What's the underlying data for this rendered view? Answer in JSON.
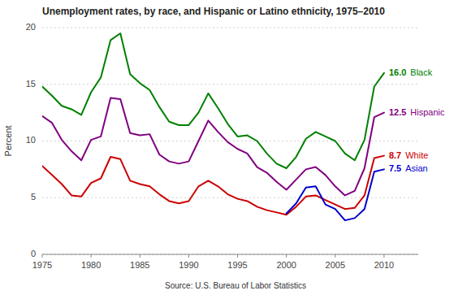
{
  "chart_data": {
    "type": "line",
    "title": "Unemployment rates, by race, and Hispanic or Latino ethnicity, 1975–2010",
    "ylabel": "Percent",
    "annotations": [
      "Source: U.S. Bureau of Labor Statistics"
    ],
    "x": [
      1975,
      1976,
      1977,
      1978,
      1979,
      1980,
      1981,
      1982,
      1983,
      1984,
      1985,
      1986,
      1987,
      1988,
      1989,
      1990,
      1991,
      1992,
      1993,
      1994,
      1995,
      1996,
      1997,
      1998,
      1999,
      2000,
      2001,
      2002,
      2003,
      2004,
      2005,
      2006,
      2007,
      2008,
      2009,
      2010
    ],
    "xlim": [
      1975,
      2013.5
    ],
    "xticks": [
      1975,
      1980,
      1985,
      1990,
      1995,
      2000,
      2005,
      2010
    ],
    "ylim": [
      0,
      20
    ],
    "yticks": [
      0,
      5,
      10,
      15,
      20
    ],
    "grid": true,
    "series": [
      {
        "name": "Black",
        "color": "#008000",
        "values": [
          14.8,
          14.0,
          13.1,
          12.8,
          12.3,
          14.3,
          15.6,
          18.9,
          19.5,
          15.9,
          15.1,
          14.5,
          13.0,
          11.7,
          11.4,
          11.4,
          12.5,
          14.2,
          12.9,
          11.5,
          10.4,
          10.5,
          10.0,
          8.9,
          8.0,
          7.6,
          8.6,
          10.2,
          10.8,
          10.4,
          10.0,
          8.9,
          8.3,
          10.1,
          14.8,
          16.0
        ],
        "value_labels": [
          null,
          null,
          null,
          null,
          null,
          null,
          null,
          null,
          null,
          null,
          null,
          null,
          null,
          null,
          null,
          null,
          null,
          null,
          null,
          null,
          null,
          null,
          null,
          null,
          null,
          null,
          null,
          null,
          null,
          null,
          null,
          null,
          null,
          null,
          null,
          "16.0"
        ]
      },
      {
        "name": "Hispanic",
        "color": "#800080",
        "values": [
          12.2,
          11.6,
          10.1,
          9.1,
          8.3,
          10.1,
          10.4,
          13.8,
          13.7,
          10.7,
          10.5,
          10.6,
          8.8,
          8.2,
          8.0,
          8.2,
          10.0,
          11.8,
          10.8,
          9.9,
          9.3,
          8.9,
          7.7,
          7.2,
          6.4,
          5.7,
          6.6,
          7.5,
          7.7,
          7.0,
          6.0,
          5.2,
          5.6,
          7.6,
          12.1,
          12.5
        ],
        "value_labels": [
          null,
          null,
          null,
          null,
          null,
          null,
          null,
          null,
          null,
          null,
          null,
          null,
          null,
          null,
          null,
          null,
          null,
          null,
          null,
          null,
          null,
          null,
          null,
          null,
          null,
          null,
          null,
          null,
          null,
          null,
          null,
          null,
          null,
          null,
          null,
          "12.5"
        ]
      },
      {
        "name": "White",
        "color": "#cc0000",
        "values": [
          7.8,
          7.0,
          6.2,
          5.2,
          5.1,
          6.3,
          6.7,
          8.6,
          8.4,
          6.5,
          6.2,
          6.0,
          5.3,
          4.7,
          4.5,
          4.7,
          6.0,
          6.5,
          6.0,
          5.3,
          4.9,
          4.7,
          4.2,
          3.9,
          3.7,
          3.5,
          4.2,
          5.1,
          5.2,
          4.8,
          4.4,
          4.0,
          4.1,
          5.2,
          8.5,
          8.7
        ],
        "value_labels": [
          null,
          null,
          null,
          null,
          null,
          null,
          null,
          null,
          null,
          null,
          null,
          null,
          null,
          null,
          null,
          null,
          null,
          null,
          null,
          null,
          null,
          null,
          null,
          null,
          null,
          null,
          null,
          null,
          null,
          null,
          null,
          null,
          null,
          null,
          null,
          "8.7"
        ]
      },
      {
        "name": "Asian",
        "color": "#0000cc",
        "values": [
          null,
          null,
          null,
          null,
          null,
          null,
          null,
          null,
          null,
          null,
          null,
          null,
          null,
          null,
          null,
          null,
          null,
          null,
          null,
          null,
          null,
          null,
          null,
          null,
          null,
          3.6,
          4.5,
          5.9,
          6.0,
          4.4,
          4.0,
          3.0,
          3.2,
          4.0,
          7.3,
          7.5
        ],
        "value_labels": [
          null,
          null,
          null,
          null,
          null,
          null,
          null,
          null,
          null,
          null,
          null,
          null,
          null,
          null,
          null,
          null,
          null,
          null,
          null,
          null,
          null,
          null,
          null,
          null,
          null,
          null,
          null,
          null,
          null,
          null,
          null,
          null,
          null,
          null,
          null,
          "7.5"
        ]
      }
    ]
  }
}
